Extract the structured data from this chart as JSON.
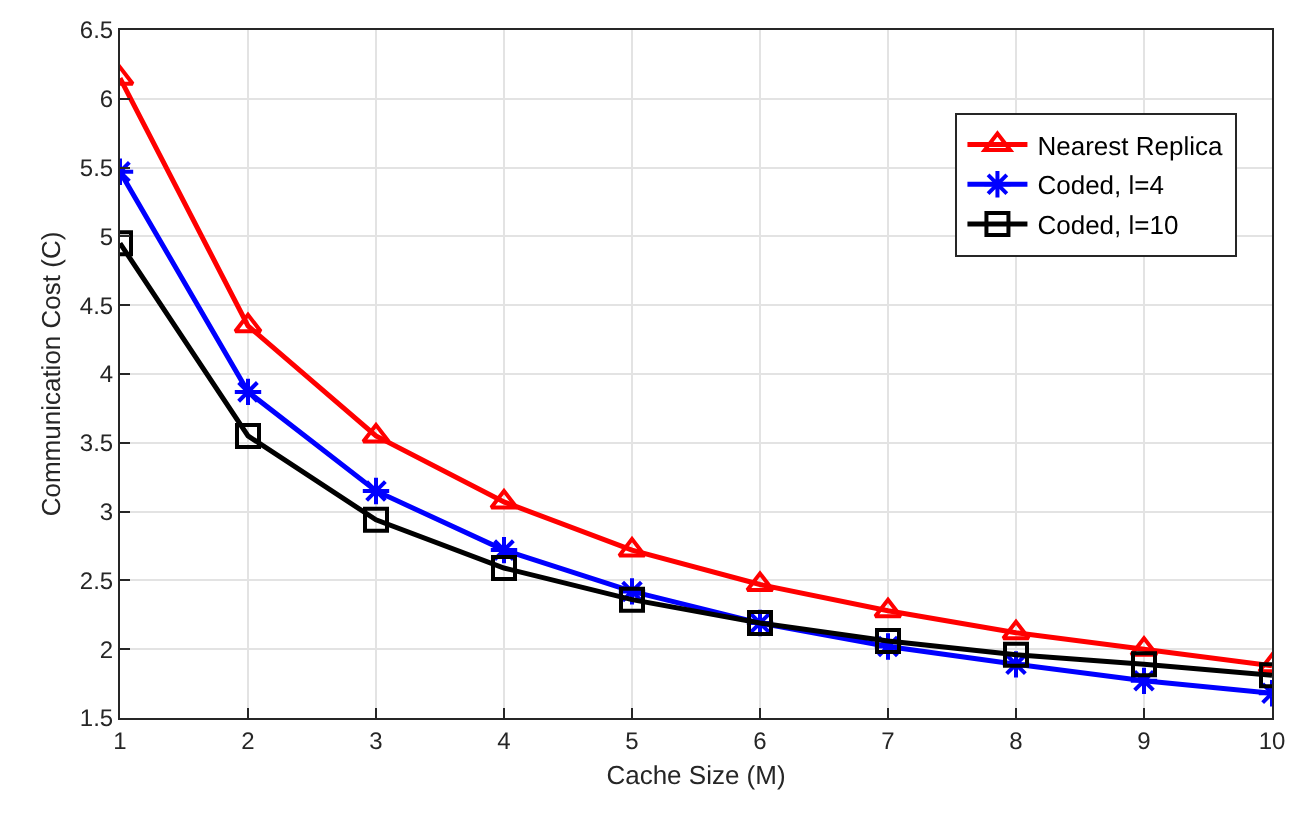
{
  "chart_data": {
    "type": "line",
    "xlabel": "Cache Size (M)",
    "ylabel": "Communication Cost (C)",
    "x": [
      1,
      2,
      3,
      4,
      5,
      6,
      7,
      8,
      9,
      10
    ],
    "xlim": [
      1,
      10
    ],
    "xticks": [
      1,
      2,
      3,
      4,
      5,
      6,
      7,
      8,
      9,
      10
    ],
    "ylim": [
      1.5,
      6.5
    ],
    "yticks": [
      1.5,
      2,
      2.5,
      3,
      3.5,
      4,
      4.5,
      5,
      5.5,
      6,
      6.5
    ],
    "grid": true,
    "legend": "top right",
    "line_style": "solid",
    "series": [
      {
        "name": "Nearest Replica",
        "color": "#ff0000",
        "marker": "triangle",
        "values": [
          6.15,
          4.35,
          3.55,
          3.07,
          2.72,
          2.47,
          2.28,
          2.12,
          2.0,
          1.88
        ]
      },
      {
        "name": "Coded, l=4",
        "color": "#0000ff",
        "marker": "cross",
        "values": [
          5.47,
          3.87,
          3.15,
          2.72,
          2.42,
          2.19,
          2.02,
          1.89,
          1.77,
          1.68
        ]
      },
      {
        "name": "Coded, l=10",
        "color": "#000000",
        "marker": "square",
        "values": [
          4.95,
          3.55,
          2.94,
          2.59,
          2.36,
          2.19,
          2.06,
          1.96,
          1.89,
          1.81
        ]
      }
    ]
  }
}
